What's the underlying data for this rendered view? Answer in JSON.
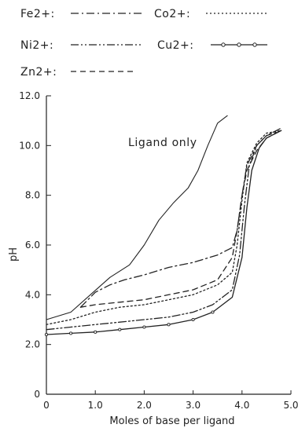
{
  "chart_data": {
    "type": "line",
    "title": "",
    "xlabel": "Moles of base per ligand",
    "ylabel": "pH",
    "xlim": [
      0,
      5.0
    ],
    "ylim": [
      0,
      12.0
    ],
    "x_ticks": [
      "0",
      "1.0",
      "2.0",
      "3.0",
      "4.0",
      "5.0"
    ],
    "y_ticks": [
      "0",
      "2.0",
      "4.0",
      "6.0",
      "8.0",
      "10.0",
      "12.0"
    ],
    "legend_position": "top",
    "annotations": [
      "Ligand only"
    ],
    "series": [
      {
        "name": "Ligand only",
        "style": "solid",
        "color": "#222222",
        "points": [
          [
            0,
            3.0
          ],
          [
            0.5,
            3.3
          ],
          [
            0.9,
            4.0
          ],
          [
            1.3,
            4.7
          ],
          [
            1.7,
            5.2
          ],
          [
            2.0,
            6.0
          ],
          [
            2.3,
            7.0
          ],
          [
            2.6,
            7.7
          ],
          [
            2.9,
            8.3
          ],
          [
            3.1,
            9.0
          ],
          [
            3.3,
            10.0
          ],
          [
            3.5,
            10.9
          ],
          [
            3.7,
            11.2
          ]
        ]
      },
      {
        "name": "Fe2+",
        "style": "dash-dot",
        "color": "#222222",
        "points": [
          [
            0.7,
            3.5
          ],
          [
            1.0,
            4.1
          ],
          [
            1.3,
            4.4
          ],
          [
            1.6,
            4.6
          ],
          [
            2.0,
            4.8
          ],
          [
            2.5,
            5.1
          ],
          [
            3.0,
            5.3
          ],
          [
            3.5,
            5.6
          ],
          [
            3.8,
            5.9
          ],
          [
            3.9,
            6.6
          ],
          [
            4.0,
            8.0
          ],
          [
            4.1,
            9.2
          ],
          [
            4.3,
            10.0
          ],
          [
            4.5,
            10.4
          ],
          [
            4.8,
            10.6
          ]
        ]
      },
      {
        "name": "Co2+",
        "style": "dotted",
        "color": "#222222",
        "points": [
          [
            0,
            2.8
          ],
          [
            0.5,
            3.0
          ],
          [
            1.0,
            3.3
          ],
          [
            1.5,
            3.5
          ],
          [
            2.0,
            3.6
          ],
          [
            2.5,
            3.8
          ],
          [
            3.0,
            4.0
          ],
          [
            3.5,
            4.4
          ],
          [
            3.8,
            4.9
          ],
          [
            3.9,
            6.0
          ],
          [
            4.0,
            7.8
          ],
          [
            4.1,
            9.3
          ],
          [
            4.3,
            10.1
          ],
          [
            4.5,
            10.5
          ],
          [
            4.8,
            10.6
          ]
        ]
      },
      {
        "name": "Ni2+",
        "style": "dash-dot-dot",
        "color": "#222222",
        "points": [
          [
            0,
            2.6
          ],
          [
            0.5,
            2.7
          ],
          [
            1.0,
            2.8
          ],
          [
            1.5,
            2.9
          ],
          [
            2.0,
            3.0
          ],
          [
            2.5,
            3.1
          ],
          [
            3.0,
            3.3
          ],
          [
            3.4,
            3.6
          ],
          [
            3.8,
            4.2
          ],
          [
            3.95,
            5.6
          ],
          [
            4.05,
            7.6
          ],
          [
            4.15,
            9.2
          ],
          [
            4.3,
            10.0
          ],
          [
            4.5,
            10.4
          ],
          [
            4.8,
            10.7
          ]
        ]
      },
      {
        "name": "Cu2+",
        "style": "circle-marker",
        "color": "#222222",
        "points": [
          [
            0,
            2.4
          ],
          [
            0.5,
            2.45
          ],
          [
            1.0,
            2.5
          ],
          [
            1.5,
            2.6
          ],
          [
            2.0,
            2.7
          ],
          [
            2.5,
            2.8
          ],
          [
            3.0,
            3.0
          ],
          [
            3.4,
            3.3
          ],
          [
            3.8,
            3.9
          ],
          [
            4.0,
            5.5
          ],
          [
            4.1,
            7.5
          ],
          [
            4.2,
            9.0
          ],
          [
            4.35,
            9.9
          ],
          [
            4.5,
            10.3
          ],
          [
            4.8,
            10.6
          ]
        ]
      },
      {
        "name": "Zn2+",
        "style": "dashed",
        "color": "#222222",
        "points": [
          [
            0.7,
            3.5
          ],
          [
            1.0,
            3.6
          ],
          [
            1.5,
            3.7
          ],
          [
            2.0,
            3.8
          ],
          [
            2.5,
            4.0
          ],
          [
            3.0,
            4.2
          ],
          [
            3.5,
            4.6
          ],
          [
            3.8,
            5.5
          ],
          [
            3.9,
            6.6
          ],
          [
            4.0,
            8.0
          ],
          [
            4.1,
            9.0
          ],
          [
            4.3,
            9.8
          ],
          [
            4.5,
            10.3
          ],
          [
            4.8,
            10.6
          ]
        ]
      }
    ]
  },
  "legend": {
    "fe_label": "Fe2+:",
    "co_label": "Co2+:",
    "ni_label": "Ni2+:",
    "cu_label": "Cu2+:",
    "zn_label": "Zn2+:"
  }
}
